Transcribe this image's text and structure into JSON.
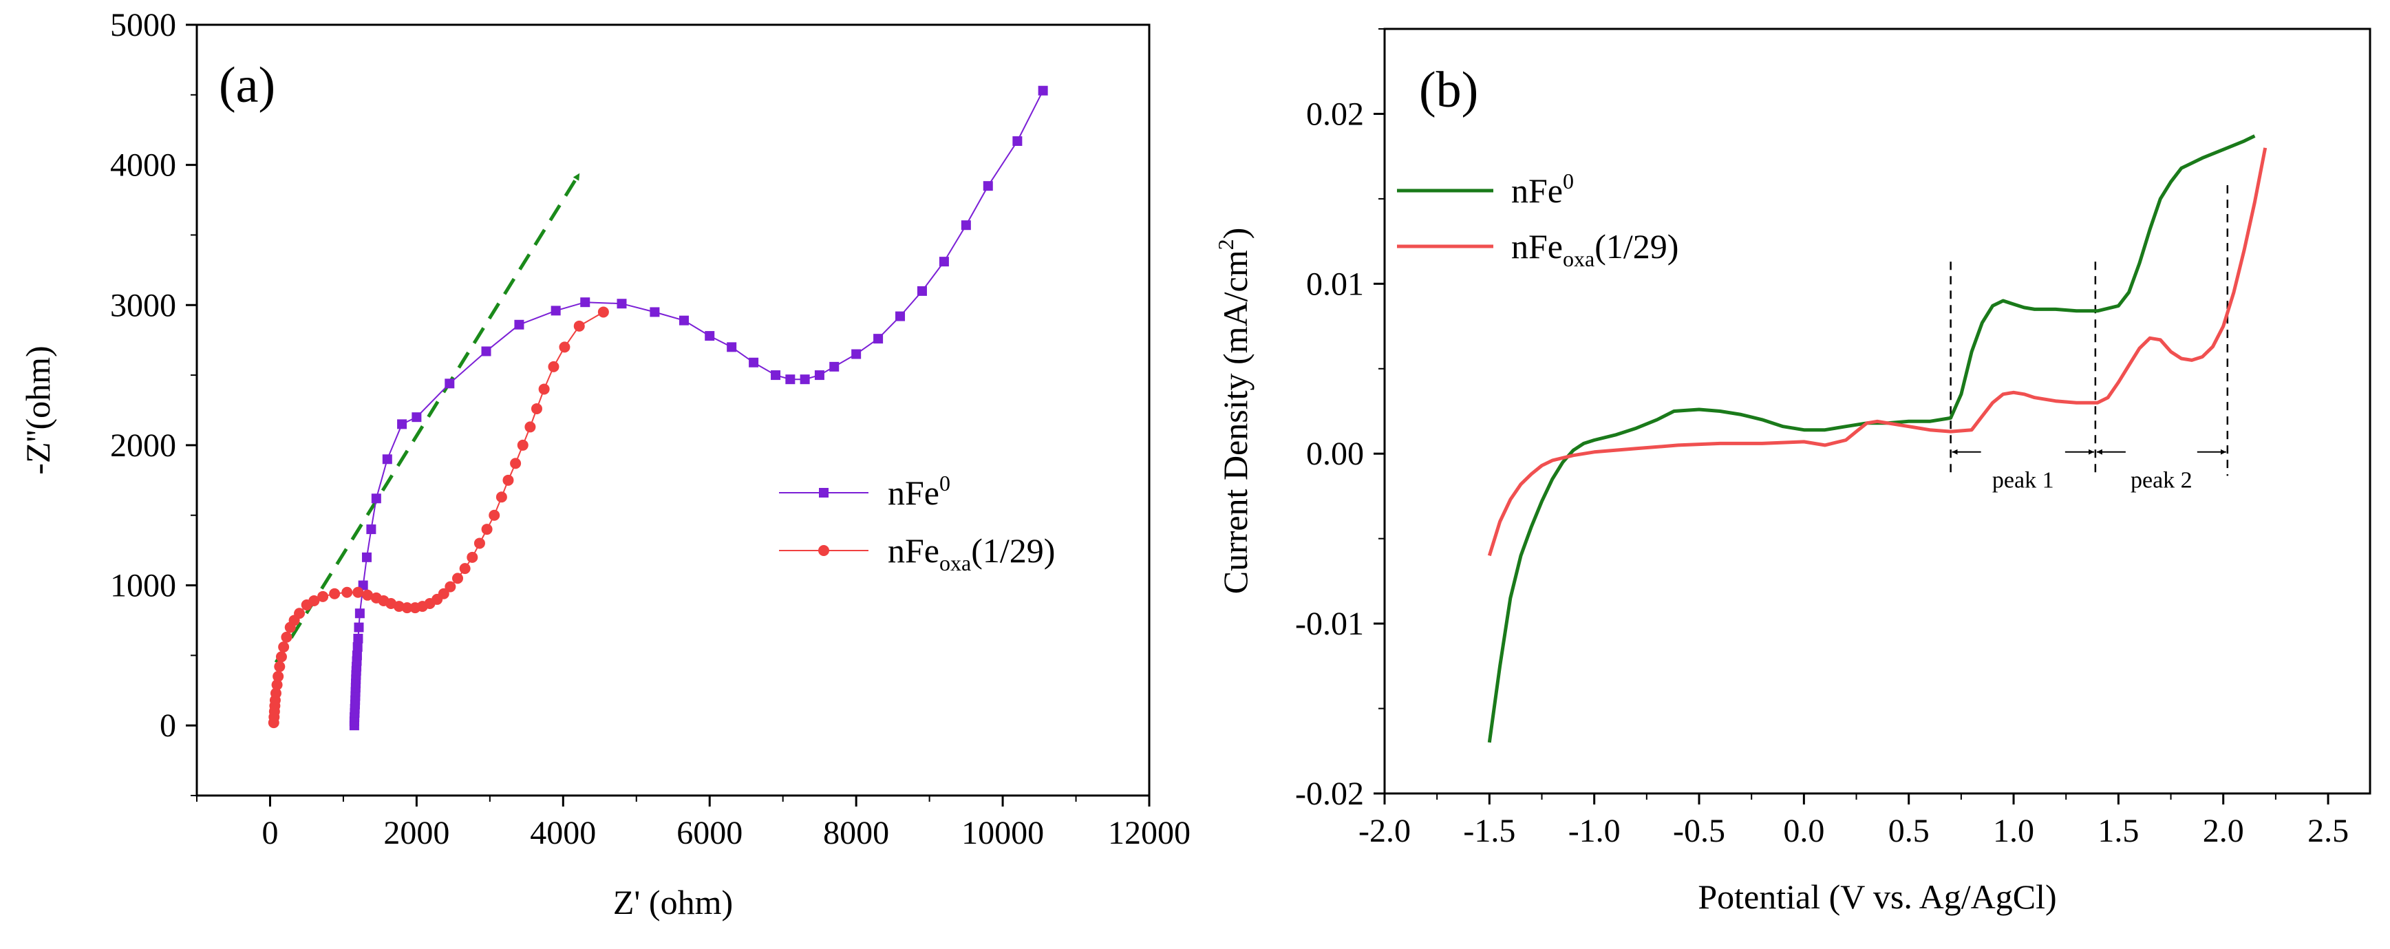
{
  "chart_data": [
    {
      "id": "a",
      "type": "line",
      "panel_label": "(a)",
      "xlabel": "Z' (ohm)",
      "ylabel": "-Z''(ohm)",
      "xlim": [
        -1000,
        12000
      ],
      "ylim": [
        -500,
        5000
      ],
      "xticks": [
        0,
        2000,
        4000,
        6000,
        8000,
        10000,
        12000
      ],
      "yticks": [
        0,
        1000,
        2000,
        3000,
        4000,
        5000
      ],
      "xtick_labels": [
        "0",
        "2000",
        "4000",
        "6000",
        "8000",
        "10000",
        "12000"
      ],
      "ytick_labels": [
        "0",
        "1000",
        "2000",
        "3000",
        "4000",
        "5000"
      ],
      "legend_position": "center-right",
      "arrow": {
        "from": [
          80,
          450
        ],
        "to": [
          4200,
          3920
        ],
        "color": "#1a8a1a",
        "style": "dashed"
      },
      "series": [
        {
          "name": "nFe0",
          "legend": {
            "base": "nFe",
            "sup": "0",
            "sub": "",
            "tail": ""
          },
          "color": "#7b1fd6",
          "marker": "square",
          "points": [
            [
              1150,
              0
            ],
            [
              1150,
              30
            ],
            [
              1152,
              60
            ],
            [
              1155,
              90
            ],
            [
              1157,
              120
            ],
            [
              1160,
              150
            ],
            [
              1162,
              180
            ],
            [
              1164,
              210
            ],
            [
              1166,
              240
            ],
            [
              1168,
              270
            ],
            [
              1170,
              300
            ],
            [
              1172,
              330
            ],
            [
              1174,
              360
            ],
            [
              1177,
              390
            ],
            [
              1180,
              420
            ],
            [
              1184,
              460
            ],
            [
              1188,
              500
            ],
            [
              1195,
              560
            ],
            [
              1202,
              620
            ],
            [
              1212,
              700
            ],
            [
              1225,
              800
            ],
            [
              1270,
              1000
            ],
            [
              1320,
              1200
            ],
            [
              1380,
              1400
            ],
            [
              1450,
              1620
            ],
            [
              1600,
              1900
            ],
            [
              1800,
              2150
            ],
            [
              2000,
              2200
            ],
            [
              2450,
              2440
            ],
            [
              2950,
              2670
            ],
            [
              3400,
              2860
            ],
            [
              3900,
              2960
            ],
            [
              4300,
              3020
            ],
            [
              4800,
              3010
            ],
            [
              5250,
              2950
            ],
            [
              5650,
              2890
            ],
            [
              6000,
              2780
            ],
            [
              6300,
              2700
            ],
            [
              6600,
              2590
            ],
            [
              6900,
              2500
            ],
            [
              7100,
              2470
            ],
            [
              7300,
              2470
            ],
            [
              7500,
              2500
            ],
            [
              7700,
              2560
            ],
            [
              8000,
              2650
            ],
            [
              8300,
              2760
            ],
            [
              8600,
              2920
            ],
            [
              8900,
              3100
            ],
            [
              9200,
              3310
            ],
            [
              9500,
              3570
            ],
            [
              9800,
              3850
            ],
            [
              10200,
              4170
            ],
            [
              10550,
              4530
            ]
          ]
        },
        {
          "name": "nFeoxa(1/29)",
          "legend": {
            "base": "nFe",
            "sup": "",
            "sub": "oxa",
            "tail": "(1/29)"
          },
          "color": "#f04040",
          "marker": "circle",
          "points": [
            [
              50,
              20
            ],
            [
              55,
              60
            ],
            [
              60,
              100
            ],
            [
              65,
              140
            ],
            [
              70,
              180
            ],
            [
              80,
              230
            ],
            [
              95,
              290
            ],
            [
              110,
              350
            ],
            [
              130,
              420
            ],
            [
              155,
              490
            ],
            [
              185,
              560
            ],
            [
              225,
              630
            ],
            [
              275,
              700
            ],
            [
              330,
              750
            ],
            [
              400,
              800
            ],
            [
              500,
              860
            ],
            [
              600,
              890
            ],
            [
              720,
              920
            ],
            [
              880,
              940
            ],
            [
              1050,
              950
            ],
            [
              1200,
              950
            ],
            [
              1330,
              930
            ],
            [
              1450,
              910
            ],
            [
              1550,
              890
            ],
            [
              1650,
              870
            ],
            [
              1760,
              850
            ],
            [
              1870,
              840
            ],
            [
              1980,
              840
            ],
            [
              2080,
              850
            ],
            [
              2180,
              870
            ],
            [
              2280,
              900
            ],
            [
              2370,
              940
            ],
            [
              2460,
              990
            ],
            [
              2560,
              1050
            ],
            [
              2660,
              1120
            ],
            [
              2760,
              1200
            ],
            [
              2860,
              1300
            ],
            [
              2960,
              1400
            ],
            [
              3060,
              1500
            ],
            [
              3160,
              1630
            ],
            [
              3250,
              1750
            ],
            [
              3350,
              1870
            ],
            [
              3450,
              2000
            ],
            [
              3550,
              2130
            ],
            [
              3640,
              2260
            ],
            [
              3740,
              2400
            ],
            [
              3870,
              2560
            ],
            [
              4020,
              2700
            ],
            [
              4220,
              2850
            ],
            [
              4550,
              2950
            ]
          ]
        }
      ]
    },
    {
      "id": "b",
      "type": "line",
      "panel_label": "(b)",
      "xlabel": "Potential (V vs. Ag/AgCl)",
      "ylabel": {
        "base": "Current  Density (mA/cm",
        "sup": "2",
        "tail": ")"
      },
      "xlim": [
        -2.0,
        2.7
      ],
      "ylim": [
        -0.02,
        0.025
      ],
      "xticks": [
        -2.0,
        -1.5,
        -1.0,
        -0.5,
        0.0,
        0.5,
        1.0,
        1.5,
        2.0,
        2.5
      ],
      "yticks": [
        -0.02,
        -0.01,
        0.0,
        0.01,
        0.02
      ],
      "xtick_labels": [
        "-2.0",
        "-1.5",
        "-1.0",
        "-0.5",
        "0.0",
        "0.5",
        "1.0",
        "1.5",
        "2.0",
        "2.5"
      ],
      "ytick_labels": [
        "-0.02",
        "-0.01",
        "0.00",
        "0.01",
        "0.02"
      ],
      "legend_position": "top-left",
      "annotations": {
        "vlines": [
          0.7,
          1.39,
          2.02
        ],
        "peaks": [
          {
            "label": "peak 1",
            "from": 0.7,
            "to": 1.39
          },
          {
            "label": "peak 2",
            "from": 1.39,
            "to": 2.02
          }
        ]
      },
      "series": [
        {
          "name": "nFe0",
          "legend": {
            "base": "nFe",
            "sup": "0",
            "sub": "",
            "tail": ""
          },
          "color": "#1a7a1a",
          "points": [
            [
              -1.5,
              -0.017
            ],
            [
              -1.45,
              -0.0125
            ],
            [
              -1.4,
              -0.0085
            ],
            [
              -1.35,
              -0.006
            ],
            [
              -1.3,
              -0.0043
            ],
            [
              -1.25,
              -0.0028
            ],
            [
              -1.2,
              -0.0015
            ],
            [
              -1.15,
              -0.0005
            ],
            [
              -1.1,
              0.0002
            ],
            [
              -1.05,
              0.0006
            ],
            [
              -1.0,
              0.0008
            ],
            [
              -0.9,
              0.0011
            ],
            [
              -0.8,
              0.0015
            ],
            [
              -0.7,
              0.002
            ],
            [
              -0.62,
              0.0025
            ],
            [
              -0.5,
              0.0026
            ],
            [
              -0.4,
              0.0025
            ],
            [
              -0.3,
              0.0023
            ],
            [
              -0.2,
              0.002
            ],
            [
              -0.1,
              0.0016
            ],
            [
              0.0,
              0.0014
            ],
            [
              0.1,
              0.0014
            ],
            [
              0.2,
              0.0016
            ],
            [
              0.3,
              0.0018
            ],
            [
              0.4,
              0.0018
            ],
            [
              0.5,
              0.0019
            ],
            [
              0.6,
              0.0019
            ],
            [
              0.7,
              0.0021
            ],
            [
              0.75,
              0.0035
            ],
            [
              0.8,
              0.006
            ],
            [
              0.85,
              0.0077
            ],
            [
              0.9,
              0.0087
            ],
            [
              0.95,
              0.009
            ],
            [
              1.0,
              0.0088
            ],
            [
              1.05,
              0.0086
            ],
            [
              1.1,
              0.0085
            ],
            [
              1.2,
              0.0085
            ],
            [
              1.3,
              0.0084
            ],
            [
              1.4,
              0.0084
            ],
            [
              1.5,
              0.0087
            ],
            [
              1.55,
              0.0095
            ],
            [
              1.6,
              0.0112
            ],
            [
              1.65,
              0.0132
            ],
            [
              1.7,
              0.015
            ],
            [
              1.75,
              0.016
            ],
            [
              1.8,
              0.0168
            ],
            [
              1.9,
              0.0174
            ],
            [
              2.0,
              0.0179
            ],
            [
              2.1,
              0.0184
            ],
            [
              2.15,
              0.0187
            ]
          ]
        },
        {
          "name": "nFeoxa(1/29)",
          "legend": {
            "base": "nFe",
            "sup": "",
            "sub": "oxa",
            "tail": "(1/29)"
          },
          "color": "#f05050",
          "points": [
            [
              -1.5,
              -0.006
            ],
            [
              -1.45,
              -0.004
            ],
            [
              -1.4,
              -0.0027
            ],
            [
              -1.35,
              -0.0018
            ],
            [
              -1.3,
              -0.0012
            ],
            [
              -1.25,
              -0.0007
            ],
            [
              -1.2,
              -0.0004
            ],
            [
              -1.1,
              -0.0001
            ],
            [
              -1.0,
              0.0001
            ],
            [
              -0.8,
              0.0003
            ],
            [
              -0.6,
              0.0005
            ],
            [
              -0.4,
              0.0006
            ],
            [
              -0.2,
              0.0006
            ],
            [
              0.0,
              0.0007
            ],
            [
              0.1,
              0.0005
            ],
            [
              0.2,
              0.0008
            ],
            [
              0.25,
              0.0013
            ],
            [
              0.3,
              0.0018
            ],
            [
              0.35,
              0.0019
            ],
            [
              0.4,
              0.0018
            ],
            [
              0.5,
              0.0016
            ],
            [
              0.6,
              0.0014
            ],
            [
              0.7,
              0.0013
            ],
            [
              0.8,
              0.0014
            ],
            [
              0.85,
              0.0022
            ],
            [
              0.9,
              0.003
            ],
            [
              0.95,
              0.0035
            ],
            [
              1.0,
              0.0036
            ],
            [
              1.05,
              0.0035
            ],
            [
              1.1,
              0.0033
            ],
            [
              1.2,
              0.0031
            ],
            [
              1.3,
              0.003
            ],
            [
              1.4,
              0.003
            ],
            [
              1.45,
              0.0033
            ],
            [
              1.5,
              0.0042
            ],
            [
              1.55,
              0.0052
            ],
            [
              1.6,
              0.0062
            ],
            [
              1.65,
              0.0068
            ],
            [
              1.7,
              0.0067
            ],
            [
              1.75,
              0.006
            ],
            [
              1.8,
              0.0056
            ],
            [
              1.85,
              0.0055
            ],
            [
              1.9,
              0.0057
            ],
            [
              1.95,
              0.0063
            ],
            [
              2.0,
              0.0075
            ],
            [
              2.05,
              0.0095
            ],
            [
              2.1,
              0.012
            ],
            [
              2.15,
              0.0148
            ],
            [
              2.2,
              0.018
            ]
          ]
        }
      ]
    }
  ]
}
